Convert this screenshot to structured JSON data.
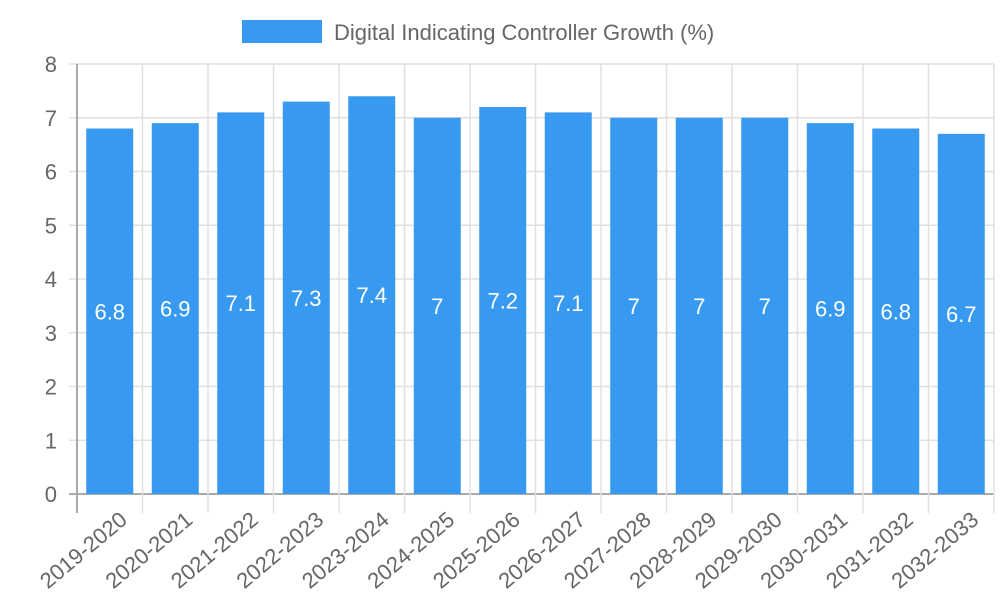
{
  "chart_data": {
    "type": "bar",
    "title": "",
    "legend": {
      "label": "Digital Indicating Controller Growth (%)",
      "placement": "top-center"
    },
    "categories": [
      "2019-2020",
      "2020-2021",
      "2021-2022",
      "2022-2023",
      "2023-2024",
      "2024-2025",
      "2025-2026",
      "2026-2027",
      "2027-2028",
      "2028-2029",
      "2029-2030",
      "2030-2031",
      "2031-2032",
      "2032-2033"
    ],
    "series": [
      {
        "name": "Digital Indicating Controller Growth (%)",
        "values": [
          6.8,
          6.9,
          7.1,
          7.3,
          7.4,
          7,
          7.2,
          7.1,
          7,
          7,
          7,
          6.9,
          6.8,
          6.7
        ]
      }
    ],
    "xlabel": "",
    "ylabel": "",
    "ylim": [
      0,
      8
    ],
    "yticks": [
      "0",
      "1",
      "2",
      "3",
      "4",
      "5",
      "6",
      "7",
      "8"
    ],
    "grid": true,
    "colors": {
      "bar": "#379AF0",
      "grid": "#e0e0e0",
      "axis": "#aaaaaa",
      "text": "#666666",
      "label": "#ffffff"
    }
  }
}
